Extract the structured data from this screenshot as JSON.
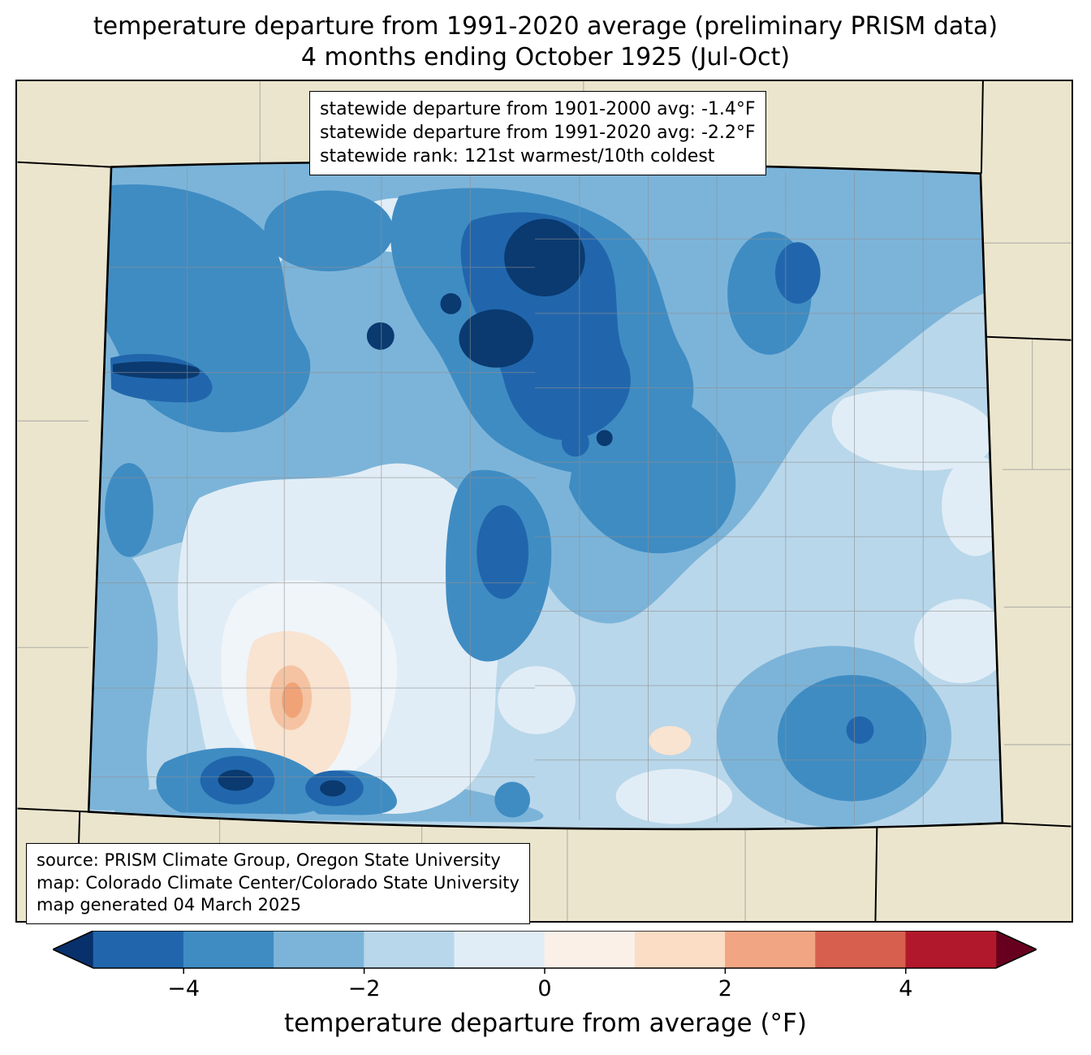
{
  "title": {
    "line1": "temperature departure from 1991-2020 average (preliminary PRISM data)",
    "line2": "4 months ending October 1925 (Jul-Oct)"
  },
  "stats_box": {
    "line1": "statewide departure from 1901-2000 avg: -1.4°F",
    "line2": "statewide departure from 1991-2020 avg: -2.2°F",
    "line3": "statewide rank: 121st warmest/10th coldest"
  },
  "source_box": {
    "line1": "source: PRISM Climate Group, Oregon State University",
    "line2": "map: Colorado Climate Center/Colorado State University",
    "line3": "map generated 04 March 2025"
  },
  "colorbar": {
    "label": "temperature departure from average (°F)",
    "ticks": [
      "−4",
      "−2",
      "0",
      "2",
      "4"
    ],
    "tick_values": [
      -4,
      -2,
      0,
      2,
      4
    ],
    "range": [
      -5,
      5
    ],
    "segment_colors": [
      "#2166ac",
      "#3f8cc3",
      "#7cb4d9",
      "#b9d7ea",
      "#e1edf6",
      "#faf0e7",
      "#fbdcc5",
      "#f2a582",
      "#d6604d",
      "#b2182b"
    ],
    "extend_left_color": "#08306b",
    "extend_right_color": "#67001f"
  },
  "map": {
    "background_color": "#ebe5cd",
    "state_border_color": "#000000",
    "county_line_color": "#8f8f8f",
    "fill_palette": [
      "#0a3a70",
      "#2166ac",
      "#3f8cc3",
      "#7cb4d9",
      "#b9d7ea",
      "#e1edf6",
      "#eff5f9",
      "#f9e3d1",
      "#f5c3a1",
      "#f0a377"
    ]
  }
}
